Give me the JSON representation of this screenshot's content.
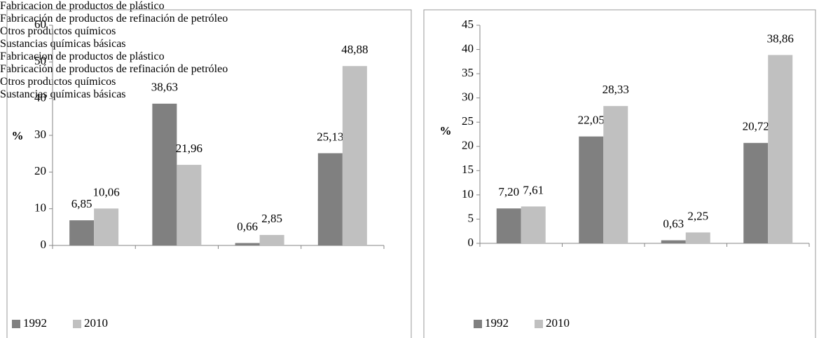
{
  "chart_data": [
    {
      "type": "bar",
      "y_label": "%",
      "categories": [
        "Fabricacion\nde productos\nde plástico",
        "Fabricación\nde productos\nde refinación\nde petróleo",
        "Otros\nproductos\nquímicos",
        "Sustancias\nquímicas\nbásicas"
      ],
      "series": [
        {
          "name": "1992",
          "color": "#808080",
          "values": [
            6.85,
            38.63,
            0.66,
            25.13
          ],
          "value_labels": [
            "6,85",
            "38,63",
            "0,66",
            "25,13"
          ]
        },
        {
          "name": "2010",
          "color": "#c0c0c0",
          "values": [
            10.06,
            21.96,
            2.85,
            48.88
          ],
          "value_labels": [
            "10,06",
            "21,96",
            "2,85",
            "48,88"
          ]
        }
      ],
      "ylim": [
        0,
        60
      ],
      "yticks": [
        0,
        10,
        20,
        30,
        40,
        50,
        60
      ],
      "legend": "bottom-left"
    },
    {
      "type": "bar",
      "y_label": "%",
      "categories": [
        "Fabricacion\nde productos\nde plástico",
        "Fabricación\nde productos\nde refinación\nde petróleo",
        "Otros\nproductos\nquímicos",
        "Sustancias\nquímicas\nbásicas"
      ],
      "series": [
        {
          "name": "1992",
          "color": "#808080",
          "values": [
            7.2,
            22.05,
            0.63,
            20.72
          ],
          "value_labels": [
            "7,20",
            "22,05",
            "0,63",
            "20,72"
          ]
        },
        {
          "name": "2010",
          "color": "#c0c0c0",
          "values": [
            7.61,
            28.33,
            2.25,
            38.86
          ],
          "value_labels": [
            "7,61",
            "28,33",
            "2,25",
            "38,86"
          ]
        }
      ],
      "ylim": [
        0,
        45
      ],
      "yticks": [
        0,
        5,
        10,
        15,
        20,
        25,
        30,
        35,
        40,
        45
      ],
      "legend": "bottom-left"
    }
  ]
}
